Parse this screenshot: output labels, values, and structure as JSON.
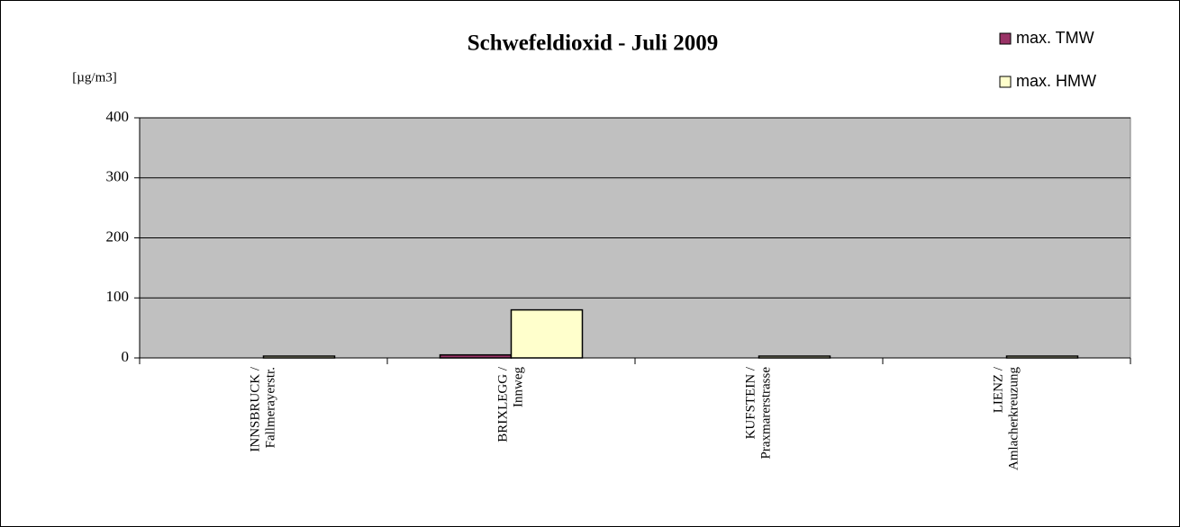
{
  "chart_data": {
    "type": "bar",
    "title": "Schwefeldioxid - Juli 2009",
    "y_label": "[µg/m3]",
    "categories": [
      [
        "INNSBRUCK /",
        "Fallmerayerstr."
      ],
      [
        "BRIXLEGG /",
        "Innweg"
      ],
      [
        "KUFSTEIN /",
        "Praxmarerstrasse"
      ],
      [
        "LIENZ /",
        "Amlacherkreuzung"
      ]
    ],
    "series": [
      {
        "name": "max. TMW",
        "color": "#993366",
        "values": [
          0,
          5,
          0,
          0
        ]
      },
      {
        "name": "max. HMW",
        "color": "#ffffcc",
        "values": [
          3,
          80,
          3,
          3
        ]
      }
    ],
    "ylim": [
      0,
      400
    ],
    "yticks": [
      0,
      100,
      200,
      300,
      400
    ],
    "grid": true,
    "plot_background": "#c0c0c0",
    "legend": "top-right"
  }
}
